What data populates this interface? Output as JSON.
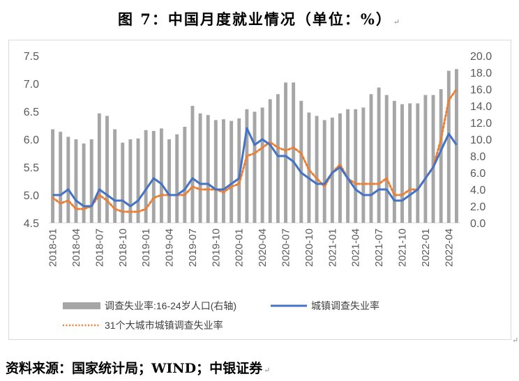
{
  "title": "图 7：中国月度就业情况（单位：%）",
  "source": "资料来源：国家统计局；WIND；中银证券",
  "edit_mark": "↵",
  "chart_data": {
    "type": "bar+line",
    "x_labels": [
      "2018-01",
      "2018-04",
      "2018-07",
      "2018-10",
      "2019-01",
      "2019-04",
      "2019-07",
      "2019-10",
      "2020-01",
      "2020-04",
      "2020-07",
      "2020-10",
      "2021-01",
      "2021-04",
      "2021-07",
      "2021-10",
      "2022-01",
      "2022-04"
    ],
    "months": [
      "2018-01",
      "2018-02",
      "2018-03",
      "2018-04",
      "2018-05",
      "2018-06",
      "2018-07",
      "2018-08",
      "2018-09",
      "2018-10",
      "2018-11",
      "2018-12",
      "2019-01",
      "2019-02",
      "2019-03",
      "2019-04",
      "2019-05",
      "2019-06",
      "2019-07",
      "2019-08",
      "2019-09",
      "2019-10",
      "2019-11",
      "2019-12",
      "2020-01",
      "2020-02",
      "2020-03",
      "2020-04",
      "2020-05",
      "2020-06",
      "2020-07",
      "2020-08",
      "2020-09",
      "2020-10",
      "2020-11",
      "2020-12",
      "2021-01",
      "2021-02",
      "2021-03",
      "2021-04",
      "2021-05",
      "2021-06",
      "2021-07",
      "2021-08",
      "2021-09",
      "2021-10",
      "2021-11",
      "2021-12",
      "2022-01",
      "2022-02",
      "2022-03",
      "2022-04",
      "2022-05"
    ],
    "left_axis": {
      "min": 4.5,
      "max": 7.5,
      "ticks": [
        "4.5",
        "5.0",
        "5.5",
        "6.0",
        "6.5",
        "7.0",
        "7.5"
      ]
    },
    "right_axis": {
      "min": 0.0,
      "max": 20.0,
      "ticks": [
        "0.0",
        "2.0",
        "4.0",
        "6.0",
        "8.0",
        "10.0",
        "12.0",
        "14.0",
        "16.0",
        "18.0",
        "20.0"
      ]
    },
    "series": [
      {
        "name": "调查失业率:16-24岁人口(右轴)",
        "type": "bar",
        "axis": "right",
        "color": "#a6a6a6",
        "values": [
          11.2,
          10.9,
          10.3,
          10.0,
          9.5,
          10.0,
          13.1,
          12.8,
          11.2,
          9.6,
          10.0,
          10.1,
          11.1,
          11.0,
          11.3,
          10.0,
          10.6,
          11.5,
          14.0,
          13.1,
          12.9,
          12.3,
          12.4,
          12.2,
          12.5,
          13.6,
          13.3,
          13.8,
          14.8,
          15.4,
          16.8,
          16.8,
          14.6,
          13.2,
          12.8,
          12.3,
          12.6,
          13.1,
          13.6,
          13.6,
          13.8,
          15.4,
          16.2,
          15.3,
          14.6,
          14.2,
          14.3,
          14.3,
          15.3,
          15.3,
          16.0,
          18.2,
          18.4
        ]
      },
      {
        "name": "城镇调查失业率",
        "type": "line",
        "axis": "left",
        "color": "#4472c4",
        "values": [
          5.0,
          5.0,
          5.1,
          4.9,
          4.8,
          4.8,
          5.1,
          5.0,
          4.9,
          4.9,
          4.8,
          4.9,
          5.1,
          5.3,
          5.2,
          5.0,
          5.0,
          5.1,
          5.3,
          5.2,
          5.2,
          5.1,
          5.1,
          5.2,
          5.3,
          6.2,
          5.9,
          6.0,
          5.9,
          5.7,
          5.7,
          5.6,
          5.4,
          5.3,
          5.2,
          5.2,
          5.4,
          5.5,
          5.3,
          5.1,
          5.0,
          5.0,
          5.1,
          5.1,
          4.9,
          4.9,
          5.0,
          5.1,
          5.3,
          5.5,
          5.8,
          6.1,
          5.9
        ]
      },
      {
        "name": "31个大城市城镇调查失业率",
        "type": "line",
        "axis": "left",
        "color": "#ed7d31",
        "values": [
          4.95,
          4.85,
          4.9,
          4.75,
          4.75,
          4.8,
          5.0,
          4.9,
          4.75,
          4.7,
          4.7,
          4.7,
          4.75,
          4.95,
          5.0,
          5.0,
          5.0,
          5.0,
          5.15,
          5.1,
          5.1,
          5.1,
          5.05,
          5.15,
          5.2,
          5.7,
          5.75,
          5.85,
          5.95,
          5.85,
          5.8,
          5.85,
          5.75,
          5.45,
          5.3,
          5.15,
          5.4,
          5.55,
          5.3,
          5.2,
          5.2,
          5.2,
          5.2,
          5.3,
          5.0,
          5.0,
          5.1,
          5.1,
          5.3,
          5.5,
          6.0,
          6.7,
          6.9
        ]
      }
    ],
    "legend_position": "bottom",
    "grid": false
  }
}
